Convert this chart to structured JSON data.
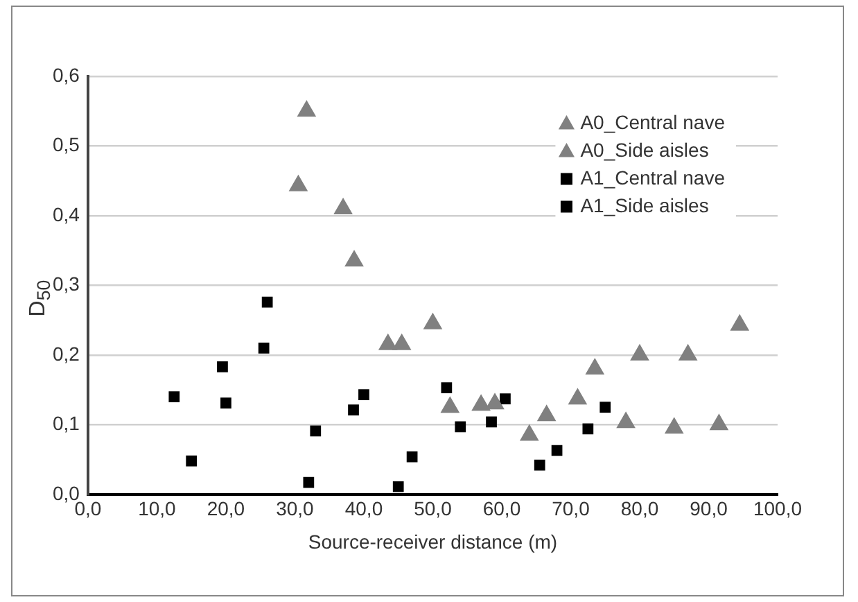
{
  "chart_data": {
    "type": "scatter",
    "xlabel": "Source-receiver distance (m)",
    "ylabel": "D$_{50}$",
    "xlim": [
      0,
      100
    ],
    "ylim": [
      0,
      0.6
    ],
    "xticks": [
      {
        "value": 0,
        "label": "0,0"
      },
      {
        "value": 10,
        "label": "10,0"
      },
      {
        "value": 20,
        "label": "20,0"
      },
      {
        "value": 30,
        "label": "30,0"
      },
      {
        "value": 40,
        "label": "40,0"
      },
      {
        "value": 50,
        "label": "50,0"
      },
      {
        "value": 60,
        "label": "60,0"
      },
      {
        "value": 70,
        "label": "70,0"
      },
      {
        "value": 80,
        "label": "80,0"
      },
      {
        "value": 90,
        "label": "90,0"
      },
      {
        "value": 100,
        "label": "100,0"
      }
    ],
    "yticks": [
      {
        "value": 0,
        "label": "0,0"
      },
      {
        "value": 0.1,
        "label": "0,1"
      },
      {
        "value": 0.2,
        "label": "0,2"
      },
      {
        "value": 0.3,
        "label": "0,3"
      },
      {
        "value": 0.4,
        "label": "0,4"
      },
      {
        "value": 0.5,
        "label": "0,5"
      },
      {
        "value": 0.6,
        "label": "0,6"
      }
    ],
    "grid": "y",
    "legend": "top right",
    "series": [
      {
        "name": "A0_Central nave",
        "color": "#808080",
        "marker": "triangle",
        "x": [
          31.7,
          38.6,
          45.5,
          52.5,
          59,
          66.5,
          73.5,
          80,
          87,
          94.5
        ],
        "values": [
          0.55,
          0.335,
          0.215,
          0.125,
          0.13,
          0.113,
          0.18,
          0.2,
          0.2,
          0.243
        ]
      },
      {
        "name": "A0_Side aisles",
        "color": "#808080",
        "marker": "triangle",
        "x": [
          30.5,
          37,
          43.5,
          50,
          57,
          64,
          71,
          78,
          85,
          91.5
        ],
        "values": [
          0.443,
          0.41,
          0.215,
          0.245,
          0.128,
          0.085,
          0.137,
          0.103,
          0.095,
          0.1
        ]
      },
      {
        "name": "A1_Central nave",
        "color": "#000000",
        "marker": "square",
        "x": [
          12.5,
          19.5,
          26,
          33,
          40,
          47,
          54,
          60.5,
          68,
          75
        ],
        "values": [
          0.14,
          0.183,
          0.276,
          0.091,
          0.143,
          0.054,
          0.097,
          0.137,
          0.063,
          0.125
        ]
      },
      {
        "name": "A1_Side aisles",
        "color": "#000000",
        "marker": "square",
        "x": [
          15,
          20,
          25.5,
          32,
          38.5,
          45,
          52,
          58.5,
          65.5,
          72.5
        ],
        "values": [
          0.048,
          0.131,
          0.21,
          0.017,
          0.121,
          0.011,
          0.153,
          0.104,
          0.042,
          0.094
        ]
      }
    ]
  }
}
